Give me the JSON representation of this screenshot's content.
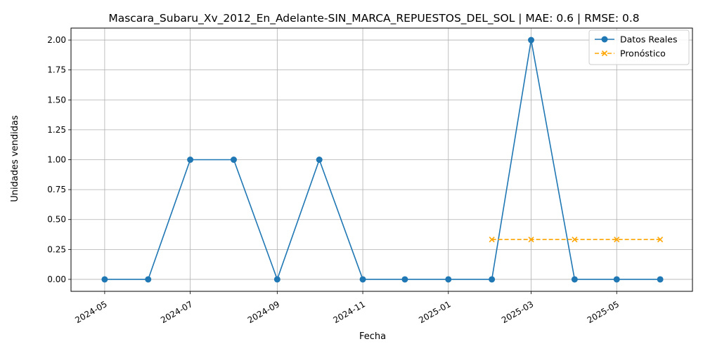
{
  "chart_data": {
    "type": "line",
    "title": "Mascara_Subaru_Xv_2012_En_Adelante-SIN_MARCA_REPUESTOS_DEL_SOL | MAE: 0.6 | RMSE: 0.8",
    "xlabel": "Fecha",
    "ylabel": "Unidades vendidas",
    "xlim": [
      "2024-04-07",
      "2025-06-24"
    ],
    "ylim": [
      -0.1,
      2.1
    ],
    "x_ticks": [
      "2024-05-01",
      "2024-07-01",
      "2024-09-01",
      "2024-11-01",
      "2025-01-01",
      "2025-03-01",
      "2025-05-01"
    ],
    "x_tick_labels": [
      "2024-05",
      "2024-07",
      "2024-09",
      "2024-11",
      "2025-01",
      "2025-03",
      "2025-05"
    ],
    "y_ticks": [
      0.0,
      0.25,
      0.5,
      0.75,
      1.0,
      1.25,
      1.5,
      1.75,
      2.0
    ],
    "y_tick_labels": [
      "0.00",
      "0.25",
      "0.50",
      "0.75",
      "1.00",
      "1.25",
      "1.50",
      "1.75",
      "2.00"
    ],
    "grid": true,
    "legend_position": "top-right",
    "series": [
      {
        "name": "Datos Reales",
        "color": "#1f77b4",
        "line_style": "solid",
        "marker": "circle",
        "x": [
          "2024-05-01",
          "2024-06-01",
          "2024-07-01",
          "2024-08-01",
          "2024-09-01",
          "2024-10-01",
          "2024-11-01",
          "2024-12-01",
          "2025-01-01",
          "2025-02-01",
          "2025-03-01",
          "2025-04-01",
          "2025-05-01",
          "2025-06-01"
        ],
        "values": [
          0,
          0,
          1,
          1,
          0,
          1,
          0,
          0,
          0,
          0,
          2,
          0,
          0,
          0
        ]
      },
      {
        "name": "Pronóstico",
        "color": "#ffa500",
        "line_style": "dashed",
        "marker": "x",
        "x": [
          "2025-02-01",
          "2025-03-01",
          "2025-04-01",
          "2025-05-01",
          "2025-06-01"
        ],
        "values": [
          0.333,
          0.333,
          0.333,
          0.333,
          0.333
        ]
      }
    ]
  }
}
